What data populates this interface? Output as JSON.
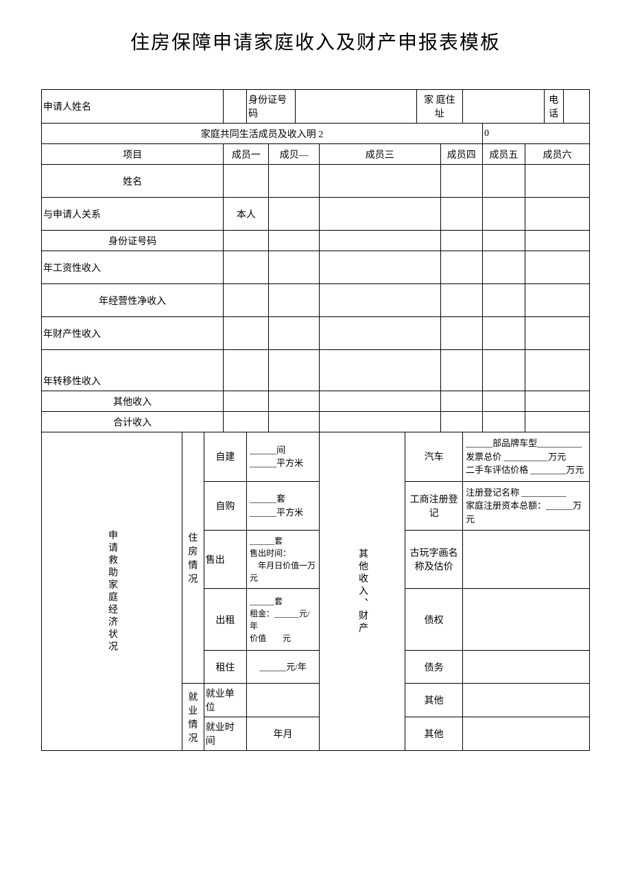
{
  "title": "住房保障申请家庭收入及财产申报表模板",
  "header": {
    "applicant_name_label": "申请人姓名",
    "id_label": "身份证号码",
    "address_label": "家 庭住址",
    "phone_label": "电话"
  },
  "section_title_a": "家庭共同生活成员及收入明 2",
  "section_title_b": "0",
  "cols": {
    "item": "项目",
    "m1": "成员一",
    "m2": "成贝—",
    "m3": "成员三",
    "m4": "成员四",
    "m5": "成员五",
    "m6": "成员六"
  },
  "rows": {
    "name": "姓名",
    "relation": "与申请人关系",
    "relation_self": "本人",
    "id": "身份证号码",
    "wage": "年工资性收入",
    "biz": "年经营性净收入",
    "prop": "年财产性收入",
    "transfer": "年转移性收入",
    "other": "其他收入",
    "total": "合计收入"
  },
  "econ": {
    "vlabel": "申请救助家庭经济状况",
    "housing_label": "住房情况",
    "self_build": "自建",
    "self_build_detail": "______间\n______平方米",
    "self_buy": "自购",
    "self_buy_detail": "______套\n______平方米",
    "sold": "售出",
    "sold_detail": "______套\n售出时间：\n 年月日价值一万元",
    "rent_out": "出租",
    "rent_out_detail": "______套\n租金：______元/年\n价值  元",
    "rent_in": "租住",
    "rent_in_detail": "______元/年",
    "employ_label": "就业情况",
    "employ_unit": "就业单位",
    "employ_time": "就业时间",
    "employ_time_val": "年月"
  },
  "other_assets": {
    "vlabel": "其他收入、财产",
    "car": "汽车",
    "car_detail": "______部品牌车型__________\n发票总价 __________万元\n二手车评估价格 ________万元",
    "biz_reg": "工商注册登记",
    "biz_reg_detail": "注册登记名称 __________\n家庭注册资本总额：______万元",
    "antique": "古玩字画名称及估价",
    "credit": "债权",
    "debt": "债务",
    "other1": "其他",
    "other2": "其他"
  }
}
